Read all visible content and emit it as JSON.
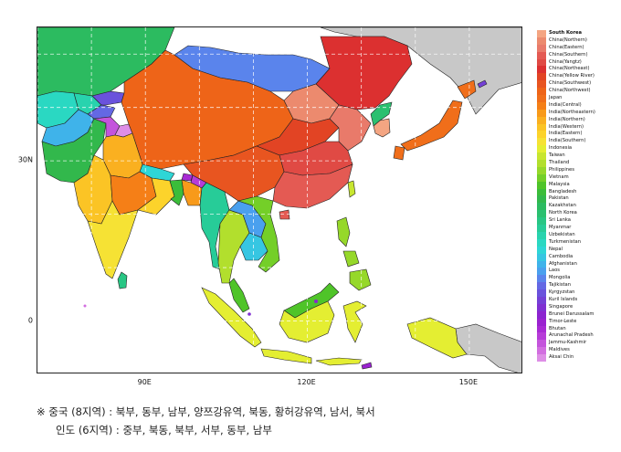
{
  "map": {
    "lon_range": [
      70,
      160
    ],
    "lat_range": [
      -10,
      55
    ],
    "ticks": {
      "x": [
        {
          "lon": 90,
          "label": "90E"
        },
        {
          "lon": 120,
          "label": "120E"
        },
        {
          "lon": 150,
          "label": "150E"
        }
      ],
      "y": [
        {
          "lat": 30,
          "label": "30N"
        },
        {
          "lat": 0,
          "label": "0"
        }
      ]
    },
    "grid": "dashed",
    "legend_position": "right",
    "regions": [
      {
        "name": "South Korea",
        "color": "#f4a582"
      },
      {
        "name": "China(Northern)",
        "color": "#ec8a6e"
      },
      {
        "name": "China(Eastern)",
        "color": "#e97a6a"
      },
      {
        "name": "China(Southern)",
        "color": "#e45a53"
      },
      {
        "name": "China(Yangtz)",
        "color": "#e04a44"
      },
      {
        "name": "China(Northeast)",
        "color": "#dc3030"
      },
      {
        "name": "China(Yellow River)",
        "color": "#e24424"
      },
      {
        "name": "China(Southwest)",
        "color": "#e85520"
      },
      {
        "name": "China(Northwest)",
        "color": "#ee6418"
      },
      {
        "name": "Japan",
        "color": "#f06e1a"
      },
      {
        "name": "India(Central)",
        "color": "#f57f17"
      },
      {
        "name": "India(Northeastern)",
        "color": "#f89a1a"
      },
      {
        "name": "India(Northern)",
        "color": "#fab020"
      },
      {
        "name": "India(Western)",
        "color": "#fbc425"
      },
      {
        "name": "India(Eastern)",
        "color": "#fcd32b"
      },
      {
        "name": "India(Southern)",
        "color": "#f6e234"
      },
      {
        "name": "Indonesia",
        "color": "#e4ee32"
      },
      {
        "name": "Taiwan",
        "color": "#c8e630"
      },
      {
        "name": "Thailand",
        "color": "#b2df2d"
      },
      {
        "name": "Philippines",
        "color": "#96d82a"
      },
      {
        "name": "Vietnam",
        "color": "#74cf28"
      },
      {
        "name": "Malaysia",
        "color": "#4fc429"
      },
      {
        "name": "Bangladesh",
        "color": "#3bbd3a"
      },
      {
        "name": "Pakistan",
        "color": "#32b84c"
      },
      {
        "name": "Kazakhstan",
        "color": "#2cbb60"
      },
      {
        "name": "North Korea",
        "color": "#2ac070"
      },
      {
        "name": "Sri Lanka",
        "color": "#28c684"
      },
      {
        "name": "Myanmar",
        "color": "#27cc98"
      },
      {
        "name": "Uzbekistan",
        "color": "#28d3ae"
      },
      {
        "name": "Turkmenistan",
        "color": "#2ad8c2"
      },
      {
        "name": "Nepal",
        "color": "#2ed6d6"
      },
      {
        "name": "Cambodia",
        "color": "#36c6e2"
      },
      {
        "name": "Afghanistan",
        "color": "#3fb3ea"
      },
      {
        "name": "Laos",
        "color": "#4aa0ee"
      },
      {
        "name": "Mongolia",
        "color": "#5a84ec"
      },
      {
        "name": "Tajikistan",
        "color": "#6468e4"
      },
      {
        "name": "Kyrgyzstan",
        "color": "#6a52dc"
      },
      {
        "name": "Kuril Islands",
        "color": "#7440d6"
      },
      {
        "name": "Singapore",
        "color": "#8030d2"
      },
      {
        "name": "Brunei Darussalam",
        "color": "#8c24d0"
      },
      {
        "name": "Timor-Leste",
        "color": "#9a22d0"
      },
      {
        "name": "Bhutan",
        "color": "#a82ad4"
      },
      {
        "name": "Arunachal Pradesh",
        "color": "#b63cd8"
      },
      {
        "name": "Jammu-Kashmir",
        "color": "#c454dc"
      },
      {
        "name": "Maldives",
        "color": "#d26ee0"
      },
      {
        "name": "Aksai Chin",
        "color": "#de8ee6"
      }
    ],
    "colors": {
      "sea": "#ffffff",
      "other_land": "#c8c8c8",
      "border": "#222222"
    }
  },
  "footnote": {
    "line1": "※ 중국 (8지역) : 북부, 동부, 남부, 양쯔강유역, 북동, 황허강유역, 남서, 북서",
    "line2": "인도 (6지역) : 중부, 북동, 북부, 서부, 동부, 남부"
  }
}
